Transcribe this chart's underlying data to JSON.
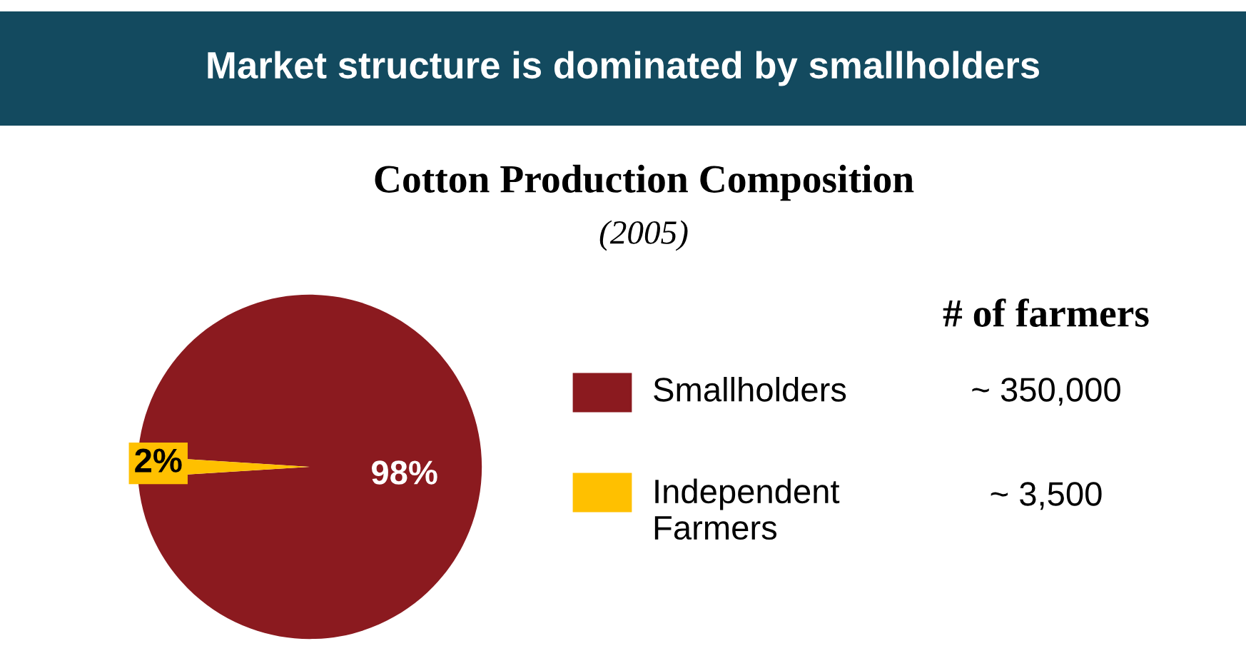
{
  "chart_data": {
    "type": "pie",
    "title": "Cotton Production Composition",
    "subtitle": "(2005)",
    "legend_title": "# of farmers",
    "legend": "right",
    "categories": [
      "Smallholders",
      "Independent\nFarmers"
    ],
    "values": [
      98,
      2
    ],
    "colors": [
      "#8b1a1f",
      "#ffc000"
    ],
    "value_labels": [
      "98%",
      "2%"
    ],
    "annotations": [
      "Market structure is dominated by smallholders",
      "~ 350,000",
      "~ 3,500"
    ]
  }
}
